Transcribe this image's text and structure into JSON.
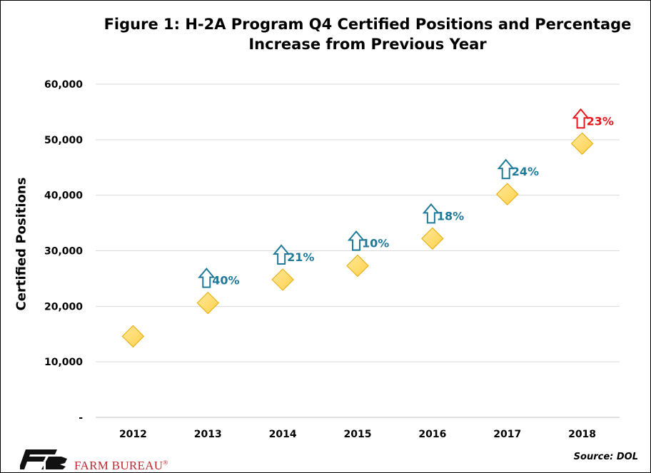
{
  "chart_data": {
    "type": "scatter",
    "title_line1": "Figure 1: H-2A Program Q4 Certified Positions and Percentage",
    "title_line2": "Increase from Previous Year",
    "ylabel": "Certified Positions",
    "xlabel": "",
    "ylim": [
      0,
      60000
    ],
    "yticks": [
      {
        "value": 0,
        "label": "-"
      },
      {
        "value": 10000,
        "label": "10,000"
      },
      {
        "value": 20000,
        "label": "20,000"
      },
      {
        "value": 30000,
        "label": "30,000"
      },
      {
        "value": 40000,
        "label": "40,000"
      },
      {
        "value": 50000,
        "label": "50,000"
      },
      {
        "value": 60000,
        "label": "60,000"
      }
    ],
    "grid": true,
    "categories": [
      "2012",
      "2013",
      "2014",
      "2015",
      "2016",
      "2017",
      "2018"
    ],
    "values": [
      14600,
      20600,
      24800,
      27300,
      32200,
      40200,
      49300
    ],
    "annotations": [
      null,
      "40%",
      "21%",
      "10%",
      "18%",
      "24%",
      "23%"
    ],
    "marker_color": "#FFD24D",
    "marker_edge": "#E8A800",
    "annotation_color": "#1F7A99",
    "highlight_color": "#E8181E"
  },
  "footer": {
    "brand": "FARM BUREAU",
    "registered": "®",
    "source": "Source: DOL"
  }
}
